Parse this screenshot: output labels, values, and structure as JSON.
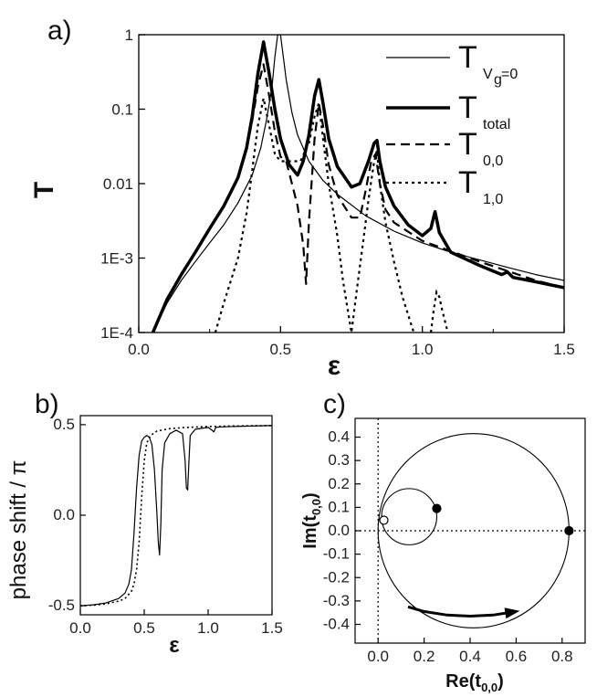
{
  "chart_data": [
    {
      "id": "a",
      "type": "line",
      "panel_label": "a)",
      "xlabel": "ε",
      "ylabel": "T",
      "xscale": "linear",
      "yscale": "log",
      "xlim": [
        0,
        1.5
      ],
      "ylim": [
        0.0001,
        1
      ],
      "x_ticks": [
        0,
        0.5,
        1.0,
        1.5
      ],
      "x_tick_labels": [
        "0.0",
        "0.5",
        "1.0",
        "1.5"
      ],
      "y_ticks": [
        0.0001,
        0.001,
        0.01,
        0.1,
        1
      ],
      "y_tick_labels": [
        "1E-4",
        "1E-3",
        "0.01",
        "0.1",
        "1"
      ],
      "legend_position": "top-right",
      "series": [
        {
          "name": "T_{Vg=0}",
          "legend_main": "T",
          "legend_sub": "V",
          "legend_sub2": "g",
          "legend_sub3": "=0",
          "style": "thin",
          "x": [
            0.05,
            0.1,
            0.15,
            0.2,
            0.25,
            0.3,
            0.35,
            0.4,
            0.43,
            0.45,
            0.47,
            0.48,
            0.49,
            0.5,
            0.51,
            0.52,
            0.54,
            0.56,
            0.6,
            0.65,
            0.7,
            0.8,
            0.9,
            1.0,
            1.1,
            1.2,
            1.3,
            1.4,
            1.5
          ],
          "y": [
            0.0001,
            0.00025,
            0.0005,
            0.0009,
            0.0016,
            0.0028,
            0.0055,
            0.013,
            0.03,
            0.07,
            0.2,
            0.5,
            1.0,
            1.0,
            0.5,
            0.25,
            0.09,
            0.045,
            0.02,
            0.011,
            0.0072,
            0.0037,
            0.0023,
            0.0016,
            0.0012,
            0.00095,
            0.00075,
            0.0006,
            0.0005
          ]
        },
        {
          "name": "T_total",
          "legend_main": "T",
          "legend_sub": "total",
          "style": "thick",
          "x": [
            0.05,
            0.1,
            0.15,
            0.2,
            0.25,
            0.3,
            0.35,
            0.38,
            0.4,
            0.42,
            0.44,
            0.46,
            0.48,
            0.5,
            0.53,
            0.56,
            0.58,
            0.6,
            0.62,
            0.635,
            0.65,
            0.67,
            0.7,
            0.75,
            0.78,
            0.81,
            0.83,
            0.84,
            0.85,
            0.87,
            0.9,
            0.95,
            1.0,
            1.03,
            1.045,
            1.06,
            1.1,
            1.2,
            1.28,
            1.3,
            1.32,
            1.4,
            1.5
          ],
          "y": [
            0.0001,
            0.00028,
            0.0006,
            0.0012,
            0.0025,
            0.005,
            0.012,
            0.03,
            0.08,
            0.3,
            0.8,
            0.3,
            0.1,
            0.04,
            0.018,
            0.013,
            0.02,
            0.045,
            0.15,
            0.25,
            0.12,
            0.04,
            0.017,
            0.009,
            0.01,
            0.02,
            0.035,
            0.038,
            0.02,
            0.009,
            0.005,
            0.0028,
            0.002,
            0.0025,
            0.0042,
            0.0022,
            0.0012,
            0.0008,
            0.0006,
            0.00065,
            0.00055,
            0.00048,
            0.0004
          ]
        },
        {
          "name": "T_{0,0}",
          "legend_main": "T",
          "legend_sub": "0,0",
          "style": "dashed",
          "x": [
            0.05,
            0.1,
            0.15,
            0.2,
            0.25,
            0.3,
            0.35,
            0.38,
            0.4,
            0.42,
            0.44,
            0.46,
            0.48,
            0.5,
            0.52,
            0.54,
            0.56,
            0.58,
            0.59,
            0.6,
            0.62,
            0.635,
            0.65,
            0.67,
            0.7,
            0.75,
            0.78,
            0.8,
            0.82,
            0.835,
            0.85,
            0.87,
            0.9,
            1.0,
            1.2,
            1.4,
            1.5
          ],
          "y": [
            0.0001,
            0.00028,
            0.0006,
            0.0012,
            0.0025,
            0.005,
            0.012,
            0.03,
            0.07,
            0.2,
            0.4,
            0.15,
            0.05,
            0.023,
            0.02,
            0.01,
            0.005,
            0.0015,
            0.00045,
            0.003,
            0.04,
            0.12,
            0.06,
            0.018,
            0.007,
            0.0035,
            0.0035,
            0.008,
            0.02,
            0.025,
            0.01,
            0.0045,
            0.003,
            0.0017,
            0.0009,
            0.0005,
            0.0004
          ]
        },
        {
          "name": "T_{1,0}",
          "legend_main": "T",
          "legend_sub": "1,0",
          "style": "dotted",
          "x": [
            0.27,
            0.3,
            0.35,
            0.38,
            0.4,
            0.42,
            0.44,
            0.46,
            0.48,
            0.5,
            0.52,
            0.54,
            0.57,
            0.6,
            0.62,
            0.635,
            0.65,
            0.67,
            0.7,
            0.72,
            0.75,
            0.77,
            0.79,
            0.81,
            0.83,
            0.84,
            0.85,
            0.87,
            0.9,
            0.93,
            0.97
          ],
          "y": [
            0.0001,
            0.00025,
            0.001,
            0.004,
            0.015,
            0.06,
            0.14,
            0.06,
            0.025,
            0.02,
            0.02,
            0.02,
            0.02,
            0.035,
            0.08,
            0.12,
            0.04,
            0.01,
            0.002,
            0.0005,
            0.0001,
            0.0004,
            0.0015,
            0.006,
            0.02,
            0.028,
            0.01,
            0.003,
            0.0009,
            0.0003,
            0.0001
          ],
          "x2": [
            1.03,
            1.04,
            1.05,
            1.06,
            1.07,
            1.09
          ],
          "y2": [
            0.0001,
            0.0002,
            0.00035,
            0.0003,
            0.0002,
            0.0001
          ]
        }
      ]
    },
    {
      "id": "b",
      "type": "line",
      "panel_label": "b)",
      "xlabel": "ε",
      "ylabel": "phase shift / π",
      "xlim": [
        0,
        1.5
      ],
      "ylim": [
        -0.55,
        0.55
      ],
      "x_ticks": [
        0,
        0.5,
        1.0,
        1.5
      ],
      "x_tick_labels": [
        "0.0",
        "0.5",
        "1.0",
        "1.5"
      ],
      "y_ticks": [
        -0.5,
        0.0,
        0.5
      ],
      "y_tick_labels": [
        "-0.5",
        "0.0",
        "0.5"
      ],
      "series": [
        {
          "name": "phase",
          "style": "solid",
          "x": [
            0.0,
            0.1,
            0.2,
            0.3,
            0.35,
            0.38,
            0.4,
            0.42,
            0.44,
            0.46,
            0.48,
            0.5,
            0.52,
            0.54,
            0.56,
            0.58,
            0.6,
            0.61,
            0.62,
            0.63,
            0.64,
            0.66,
            0.7,
            0.75,
            0.8,
            0.82,
            0.83,
            0.84,
            0.85,
            0.86,
            0.9,
            1.0,
            1.03,
            1.045,
            1.06,
            1.1,
            1.2,
            1.3,
            1.4,
            1.5
          ],
          "y": [
            -0.5,
            -0.495,
            -0.485,
            -0.46,
            -0.43,
            -0.38,
            -0.3,
            -0.1,
            0.15,
            0.33,
            0.41,
            0.43,
            0.44,
            0.43,
            0.39,
            0.25,
            0.0,
            -0.15,
            -0.22,
            -0.05,
            0.25,
            0.4,
            0.45,
            0.47,
            0.45,
            0.3,
            0.15,
            0.14,
            0.3,
            0.44,
            0.475,
            0.485,
            0.47,
            0.46,
            0.485,
            0.488,
            0.49,
            0.492,
            0.494,
            0.495
          ]
        },
        {
          "name": "phase Vg=0",
          "style": "dotted",
          "x": [
            0.0,
            0.1,
            0.2,
            0.3,
            0.35,
            0.4,
            0.42,
            0.44,
            0.46,
            0.48,
            0.5,
            0.52,
            0.55,
            0.6,
            0.7,
            0.8,
            1.0,
            1.2,
            1.5
          ],
          "y": [
            -0.5,
            -0.497,
            -0.49,
            -0.475,
            -0.46,
            -0.42,
            -0.38,
            -0.3,
            -0.15,
            0.1,
            0.3,
            0.4,
            0.44,
            0.465,
            0.478,
            0.484,
            0.49,
            0.493,
            0.495
          ]
        }
      ]
    },
    {
      "id": "c",
      "type": "line",
      "panel_label": "c)",
      "xlabel": "Re(t",
      "xlabel_sub": "0,0",
      "xlabel_close": ")",
      "ylabel": "Im(t",
      "ylabel_sub": "0,0",
      "ylabel_close": ")",
      "xlim": [
        -0.1,
        0.9
      ],
      "ylim": [
        -0.48,
        0.48
      ],
      "x_ticks": [
        0.0,
        0.2,
        0.4,
        0.6,
        0.8
      ],
      "x_tick_labels": [
        "0.0",
        "0.2",
        "0.4",
        "0.6",
        "0.8"
      ],
      "y_ticks": [
        -0.4,
        -0.3,
        -0.2,
        -0.1,
        0.0,
        0.1,
        0.2,
        0.3,
        0.4
      ],
      "y_tick_labels": [
        "-0.4",
        "-0.3",
        "-0.2",
        "-0.1",
        "0.0",
        "0.1",
        "0.2",
        "0.3",
        "0.4"
      ],
      "reference_lines": {
        "x": 0.0,
        "y": 0.0,
        "style": "dotted"
      },
      "circles": [
        {
          "name": "large-circle",
          "cx": 0.415,
          "cy": 0.0,
          "r": 0.415
        },
        {
          "name": "small-circle",
          "cx": 0.135,
          "cy": 0.06,
          "r": 0.12
        }
      ],
      "markers": [
        {
          "name": "filled-marker-large",
          "x": 0.83,
          "y": 0.0,
          "filled": true
        },
        {
          "name": "filled-marker-small",
          "x": 0.255,
          "y": 0.095,
          "filled": true
        },
        {
          "name": "open-marker",
          "x": 0.025,
          "y": 0.045,
          "filled": false
        }
      ],
      "arrow": {
        "x": [
          0.13,
          0.2,
          0.3,
          0.4,
          0.5,
          0.6
        ],
        "y": [
          -0.325,
          -0.345,
          -0.36,
          -0.365,
          -0.36,
          -0.345
        ]
      }
    }
  ]
}
